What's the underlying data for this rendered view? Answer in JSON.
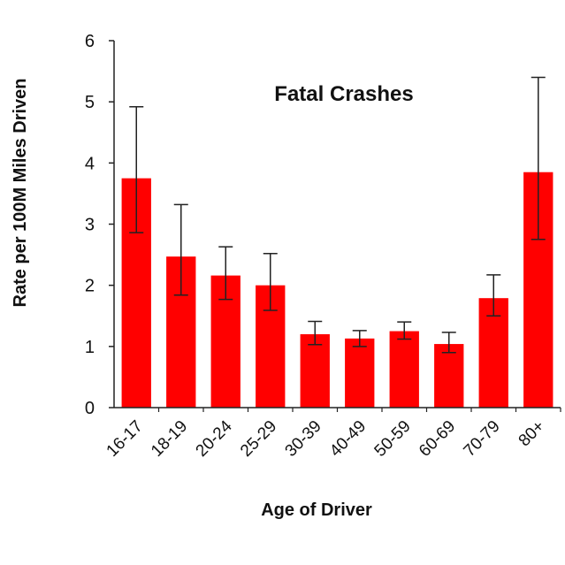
{
  "chart_data": {
    "type": "bar",
    "title": "Fatal Crashes",
    "xlabel": "Age of Driver",
    "ylabel": "Rate per 100M Miles Driven",
    "ylim": [
      0,
      6
    ],
    "yticks": [
      "0",
      "1",
      "2",
      "3",
      "4",
      "5",
      "6"
    ],
    "categories": [
      "16-17",
      "18-19",
      "20-24",
      "25-29",
      "30-39",
      "40-49",
      "50-59",
      "60-69",
      "70-79",
      "80+"
    ],
    "values": [
      3.75,
      2.47,
      2.16,
      2.0,
      1.2,
      1.13,
      1.25,
      1.04,
      1.79,
      3.85
    ],
    "error_low": [
      2.86,
      1.84,
      1.77,
      1.59,
      1.03,
      1.0,
      1.12,
      0.9,
      1.5,
      2.75
    ],
    "error_high": [
      4.92,
      3.32,
      2.63,
      2.52,
      1.41,
      1.26,
      1.4,
      1.23,
      2.17,
      5.4
    ],
    "grid": false,
    "legend": "none",
    "bar_color": "#ff0000",
    "error_bar_color": "#222222"
  }
}
